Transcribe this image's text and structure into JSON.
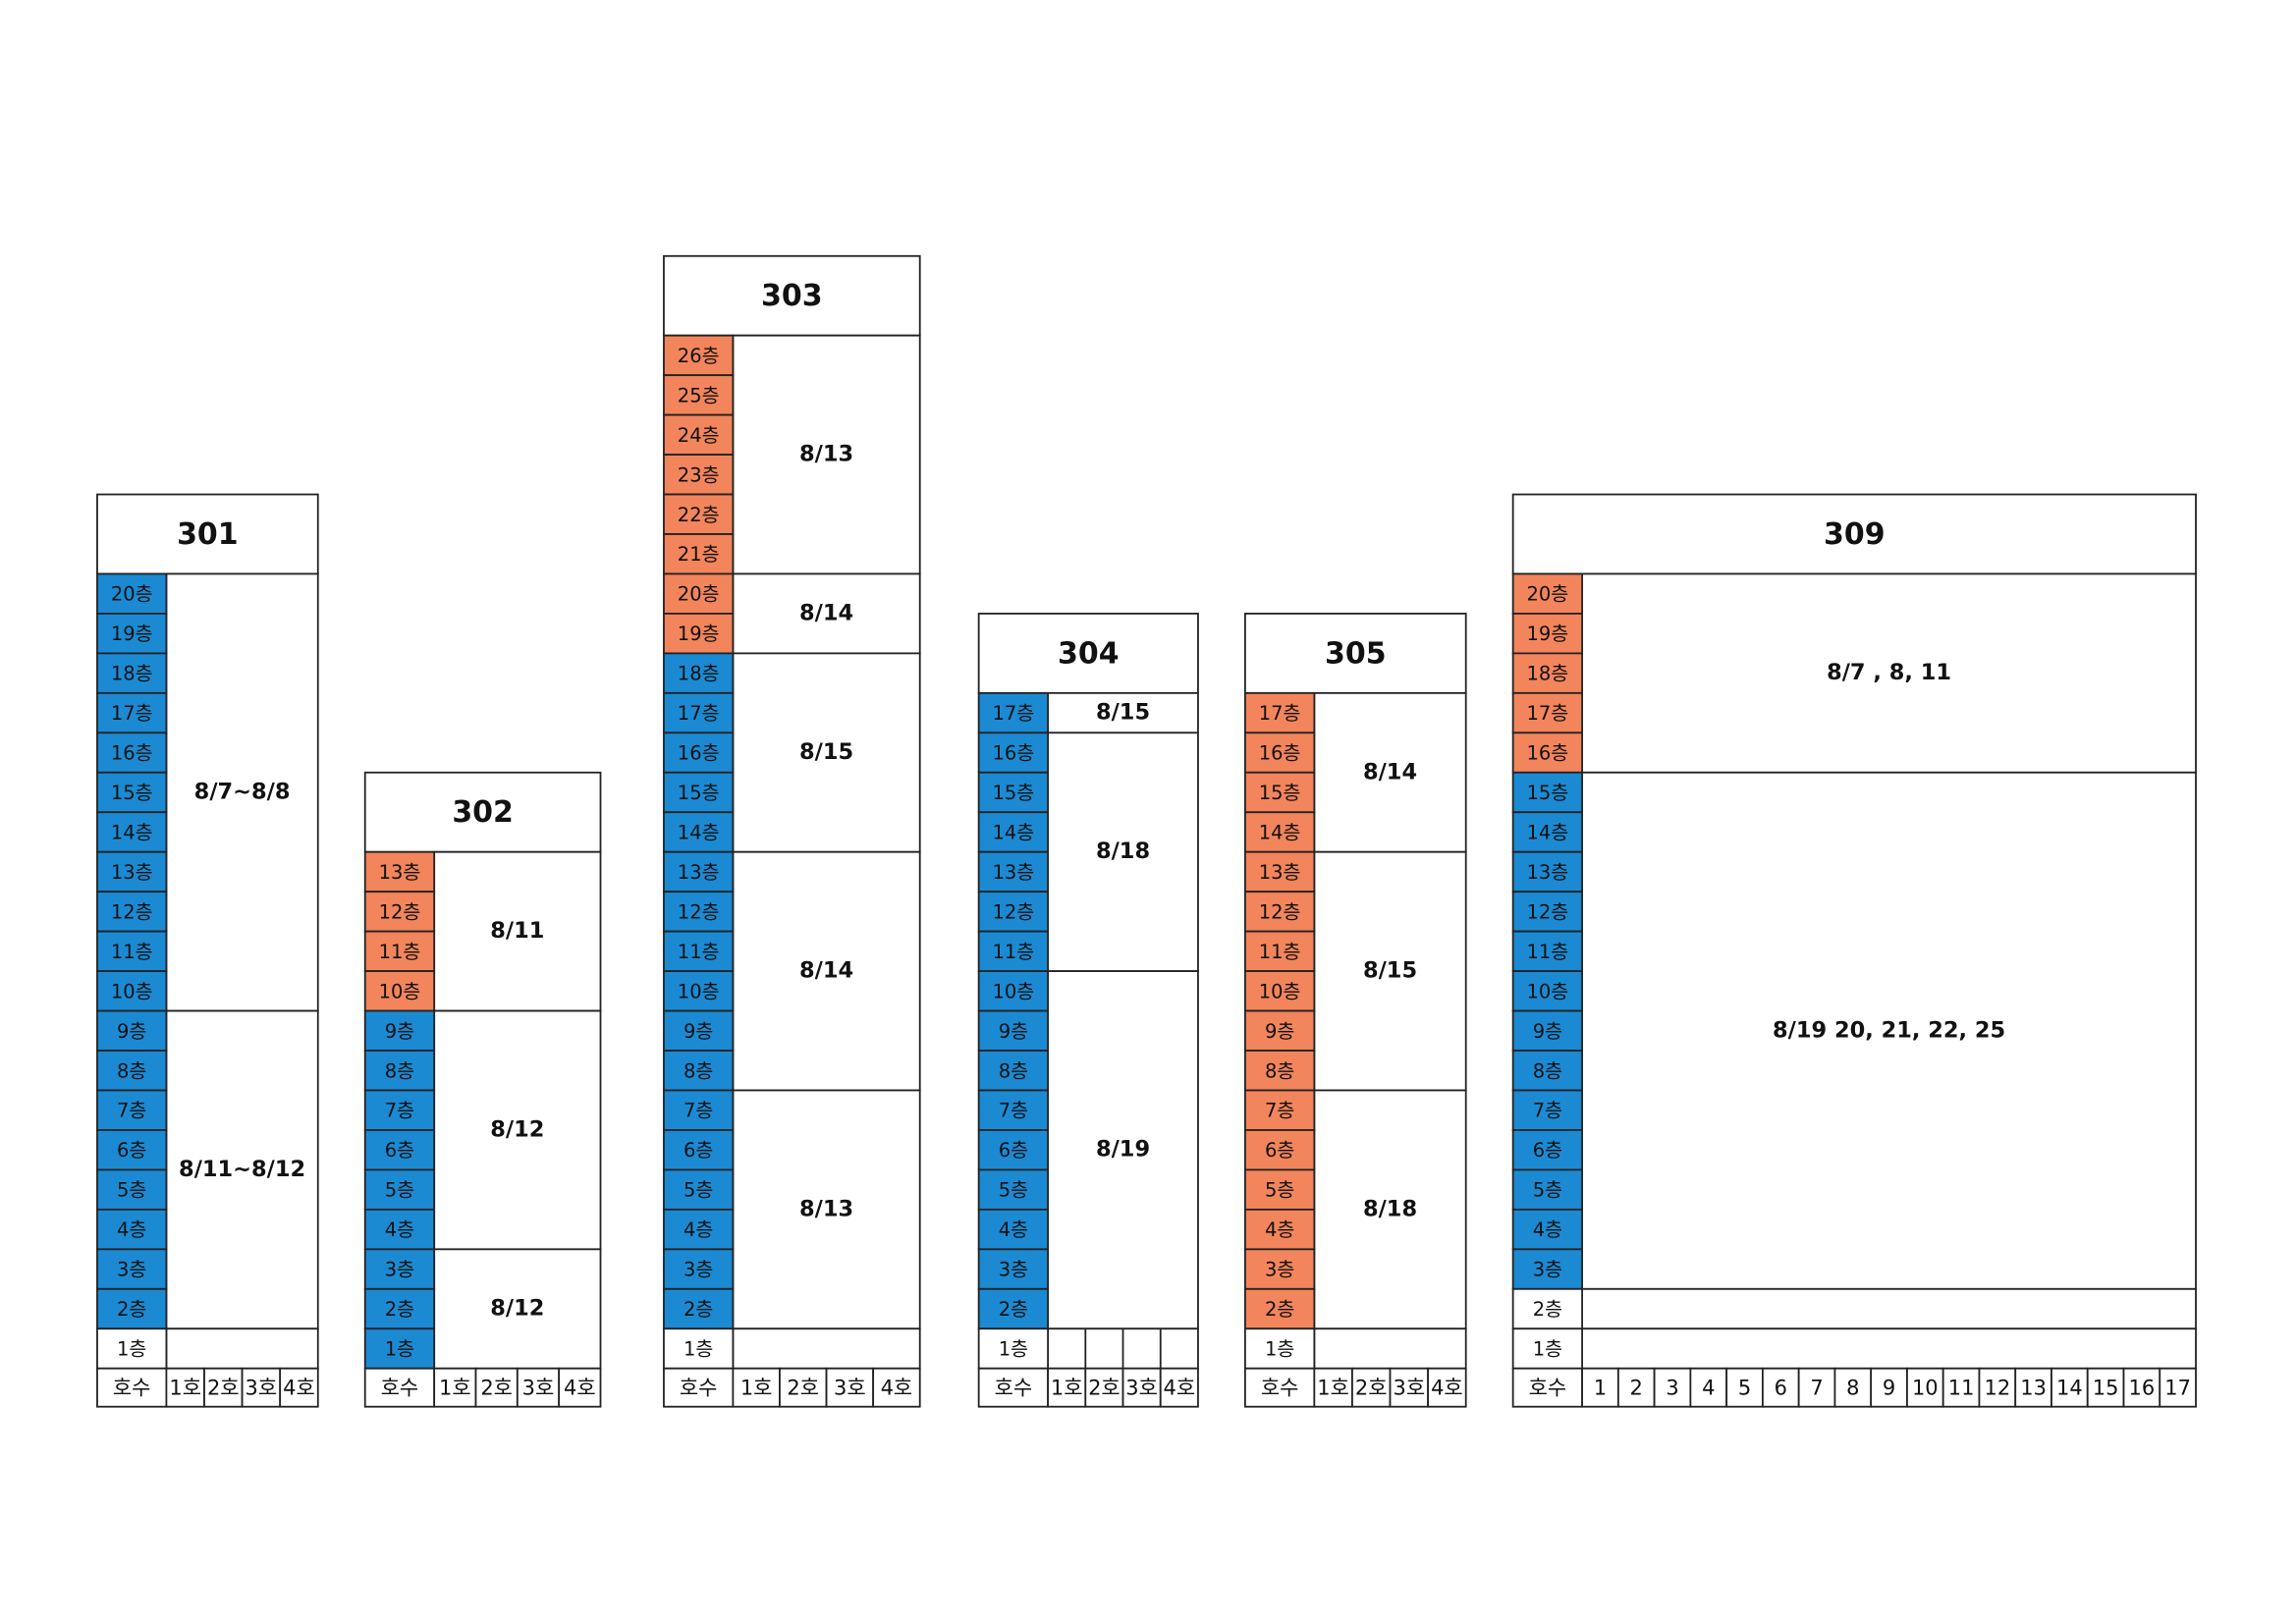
{
  "buildings": [
    {
      "name": "301",
      "unit_header": "호수",
      "units": [
        "1호",
        "2호",
        "3호",
        "4호"
      ],
      "blocks": [
        {
          "label": "8/7~8/8",
          "floors": [
            {
              "label": "20층",
              "color": "#1b8ad3"
            },
            {
              "label": "19층",
              "color": "#1b8ad3"
            },
            {
              "label": "18층",
              "color": "#1b8ad3"
            },
            {
              "label": "17층",
              "color": "#1b8ad3"
            },
            {
              "label": "16층",
              "color": "#1b8ad3"
            },
            {
              "label": "15층",
              "color": "#1b8ad3"
            },
            {
              "label": "14층",
              "color": "#1b8ad3"
            },
            {
              "label": "13층",
              "color": "#1b8ad3"
            },
            {
              "label": "12층",
              "color": "#1b8ad3"
            },
            {
              "label": "11층",
              "color": "#1b8ad3"
            },
            {
              "label": "10층",
              "color": "#1b8ad3"
            }
          ]
        },
        {
          "label": "8/11~8/12",
          "floors": [
            {
              "label": "9층",
              "color": "#1b8ad3"
            },
            {
              "label": "8층",
              "color": "#1b8ad3"
            },
            {
              "label": "7층",
              "color": "#1b8ad3"
            },
            {
              "label": "6층",
              "color": "#1b8ad3"
            },
            {
              "label": "5층",
              "color": "#1b8ad3"
            },
            {
              "label": "4층",
              "color": "#1b8ad3"
            },
            {
              "label": "3층",
              "color": "#1b8ad3"
            },
            {
              "label": "2층",
              "color": "#1b8ad3"
            }
          ]
        },
        {
          "floors": [
            {
              "label": "1층",
              "color": "#ffffff"
            }
          ]
        }
      ]
    },
    {
      "name": "302",
      "unit_header": "호수",
      "units": [
        "1호",
        "2호",
        "3호",
        "4호"
      ],
      "blocks": [
        {
          "label": "8/11",
          "floors": [
            {
              "label": "13층",
              "color": "#f2855c"
            },
            {
              "label": "12층",
              "color": "#f2855c"
            },
            {
              "label": "11층",
              "color": "#f2855c"
            },
            {
              "label": "10층",
              "color": "#f2855c"
            }
          ]
        },
        {
          "label": "8/12",
          "floors": [
            {
              "label": "9층",
              "color": "#1b8ad3"
            },
            {
              "label": "8층",
              "color": "#1b8ad3"
            },
            {
              "label": "7층",
              "color": "#1b8ad3"
            },
            {
              "label": "6층",
              "color": "#1b8ad3"
            },
            {
              "label": "5층",
              "color": "#1b8ad3"
            },
            {
              "label": "4층",
              "color": "#1b8ad3"
            }
          ]
        },
        {
          "label": "8/12",
          "floors": [
            {
              "label": "3층",
              "color": "#1b8ad3"
            },
            {
              "label": "2층",
              "color": "#1b8ad3"
            },
            {
              "label": "1층",
              "color": "#1b8ad3"
            }
          ]
        }
      ]
    },
    {
      "name": "303",
      "unit_header": "호수",
      "units": [
        "1호",
        "2호",
        "3호",
        "4호"
      ],
      "blocks": [
        {
          "label": "8/13",
          "floors": [
            {
              "label": "26층",
              "color": "#f2855c"
            },
            {
              "label": "25층",
              "color": "#f2855c"
            },
            {
              "label": "24층",
              "color": "#f2855c"
            },
            {
              "label": "23층",
              "color": "#f2855c"
            },
            {
              "label": "22층",
              "color": "#f2855c"
            },
            {
              "label": "21층",
              "color": "#f2855c"
            }
          ]
        },
        {
          "label": "8/14",
          "floors": [
            {
              "label": "20층",
              "color": "#f2855c"
            },
            {
              "label": "19층",
              "color": "#f2855c"
            }
          ]
        },
        {
          "label": "8/15",
          "floors": [
            {
              "label": "18층",
              "color": "#1b8ad3"
            },
            {
              "label": "17층",
              "color": "#1b8ad3"
            },
            {
              "label": "16층",
              "color": "#1b8ad3"
            },
            {
              "label": "15층",
              "color": "#1b8ad3"
            },
            {
              "label": "14층",
              "color": "#1b8ad3"
            }
          ]
        },
        {
          "label": "8/14",
          "floors": [
            {
              "label": "13층",
              "color": "#1b8ad3"
            },
            {
              "label": "12층",
              "color": "#1b8ad3"
            },
            {
              "label": "11층",
              "color": "#1b8ad3"
            },
            {
              "label": "10층",
              "color": "#1b8ad3"
            },
            {
              "label": "9층",
              "color": "#1b8ad3"
            },
            {
              "label": "8층",
              "color": "#1b8ad3"
            }
          ]
        },
        {
          "label": "8/13",
          "floors": [
            {
              "label": "7층",
              "color": "#1b8ad3"
            },
            {
              "label": "6층",
              "color": "#1b8ad3"
            },
            {
              "label": "5층",
              "color": "#1b8ad3"
            },
            {
              "label": "4층",
              "color": "#1b8ad3"
            },
            {
              "label": "3층",
              "color": "#1b8ad3"
            },
            {
              "label": "2층",
              "color": "#1b8ad3"
            }
          ]
        },
        {
          "floors": [
            {
              "label": "1층",
              "color": "#ffffff"
            }
          ]
        }
      ]
    },
    {
      "name": "304",
      "unit_header": "호수",
      "units": [
        "1호",
        "2호",
        "3호",
        "4호"
      ],
      "blocks": [
        {
          "label": "8/15",
          "floors": [
            {
              "label": "17층",
              "color": "#1b8ad3"
            }
          ]
        },
        {
          "label": "8/18",
          "floors": [
            {
              "label": "16층",
              "color": "#1b8ad3"
            },
            {
              "label": "15층",
              "color": "#1b8ad3"
            },
            {
              "label": "14층",
              "color": "#1b8ad3"
            },
            {
              "label": "13층",
              "color": "#1b8ad3"
            },
            {
              "label": "12층",
              "color": "#1b8ad3"
            },
            {
              "label": "11층",
              "color": "#1b8ad3"
            }
          ]
        },
        {
          "label": "8/19",
          "floors": [
            {
              "label": "10층",
              "color": "#1b8ad3"
            },
            {
              "label": "9층",
              "color": "#1b8ad3"
            },
            {
              "label": "8층",
              "color": "#1b8ad3"
            },
            {
              "label": "7층",
              "color": "#1b8ad3"
            },
            {
              "label": "6층",
              "color": "#1b8ad3"
            },
            {
              "label": "5층",
              "color": "#1b8ad3"
            },
            {
              "label": "4층",
              "color": "#1b8ad3"
            },
            {
              "label": "3층",
              "color": "#1b8ad3"
            },
            {
              "label": "2층",
              "color": "#1b8ad3"
            }
          ]
        },
        {
          "split_units": true,
          "floors": [
            {
              "label": "1층",
              "color": "#ffffff"
            }
          ]
        }
      ]
    },
    {
      "name": "305",
      "unit_header": "호수",
      "units": [
        "1호",
        "2호",
        "3호",
        "4호"
      ],
      "blocks": [
        {
          "label": "8/14",
          "floors": [
            {
              "label": "17층",
              "color": "#f2855c"
            },
            {
              "label": "16층",
              "color": "#f2855c"
            },
            {
              "label": "15층",
              "color": "#f2855c"
            },
            {
              "label": "14층",
              "color": "#f2855c"
            }
          ]
        },
        {
          "label": "8/15",
          "floors": [
            {
              "label": "13층",
              "color": "#f2855c"
            },
            {
              "label": "12층",
              "color": "#f2855c"
            },
            {
              "label": "11층",
              "color": "#f2855c"
            },
            {
              "label": "10층",
              "color": "#f2855c"
            },
            {
              "label": "9층",
              "color": "#f2855c"
            },
            {
              "label": "8층",
              "color": "#f2855c"
            }
          ]
        },
        {
          "label": "8/18",
          "floors": [
            {
              "label": "7층",
              "color": "#f2855c"
            },
            {
              "label": "6층",
              "color": "#f2855c"
            },
            {
              "label": "5층",
              "color": "#f2855c"
            },
            {
              "label": "4층",
              "color": "#f2855c"
            },
            {
              "label": "3층",
              "color": "#f2855c"
            },
            {
              "label": "2층",
              "color": "#f2855c"
            }
          ]
        },
        {
          "floors": [
            {
              "label": "1층",
              "color": "#ffffff"
            }
          ]
        }
      ]
    },
    {
      "name": "309",
      "unit_header": "호수",
      "units": [
        "1",
        "2",
        "3",
        "4",
        "5",
        "6",
        "7",
        "8",
        "9",
        "10",
        "11",
        "12",
        "13",
        "14",
        "15",
        "16",
        "17"
      ],
      "blocks": [
        {
          "label": "8/7 , 8, 11",
          "floors": [
            {
              "label": "20층",
              "color": "#f2855c"
            },
            {
              "label": "19층",
              "color": "#f2855c"
            },
            {
              "label": "18층",
              "color": "#f2855c"
            },
            {
              "label": "17층",
              "color": "#f2855c"
            },
            {
              "label": "16층",
              "color": "#f2855c"
            }
          ]
        },
        {
          "label": "8/19 20, 21, 22, 25",
          "floors": [
            {
              "label": "15층",
              "color": "#1b8ad3"
            },
            {
              "label": "14층",
              "color": "#1b8ad3"
            },
            {
              "label": "13층",
              "color": "#1b8ad3"
            },
            {
              "label": "12층",
              "color": "#1b8ad3"
            },
            {
              "label": "11층",
              "color": "#1b8ad3"
            },
            {
              "label": "10층",
              "color": "#1b8ad3"
            },
            {
              "label": "9층",
              "color": "#1b8ad3"
            },
            {
              "label": "8층",
              "color": "#1b8ad3"
            },
            {
              "label": "7층",
              "color": "#1b8ad3"
            },
            {
              "label": "6층",
              "color": "#1b8ad3"
            },
            {
              "label": "5층",
              "color": "#1b8ad3"
            },
            {
              "label": "4층",
              "color": "#1b8ad3"
            },
            {
              "label": "3층",
              "color": "#1b8ad3"
            }
          ]
        },
        {
          "floors": [
            {
              "label": "2층",
              "color": "#ffffff"
            }
          ]
        },
        {
          "floors": [
            {
              "label": "1층",
              "color": "#ffffff"
            }
          ]
        }
      ]
    }
  ]
}
